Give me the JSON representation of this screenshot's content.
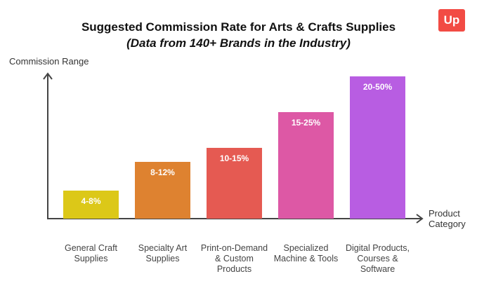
{
  "chart_data": {
    "type": "bar",
    "title": "Suggested Commission Rate for Arts & Crafts Supplies",
    "subtitle": "(Data from 140+ Brands in the Industry)",
    "ylabel": "Commission Range",
    "xlabel": "Product\nCategory",
    "grid": false,
    "categories": [
      "General Craft\nSupplies",
      "Specialty Art\nSupplies",
      "Print-on-Demand\n& Custom\nProducts",
      "Specialized\nMachine & Tools",
      "Digital Products,\nCourses &\nSoftware"
    ],
    "values": [
      [
        4,
        8
      ],
      [
        8,
        12
      ],
      [
        10,
        15
      ],
      [
        15,
        25
      ],
      [
        20,
        50
      ]
    ],
    "data_labels": [
      "4-8%",
      "8-12%",
      "10-15%",
      "15-25%",
      "20-50%"
    ],
    "colors": [
      "#dcc818",
      "#de8230",
      "#e55a52",
      "#dd58a5",
      "#b85de2"
    ]
  },
  "logo": {
    "text": "Up",
    "color": "#f24b44"
  }
}
